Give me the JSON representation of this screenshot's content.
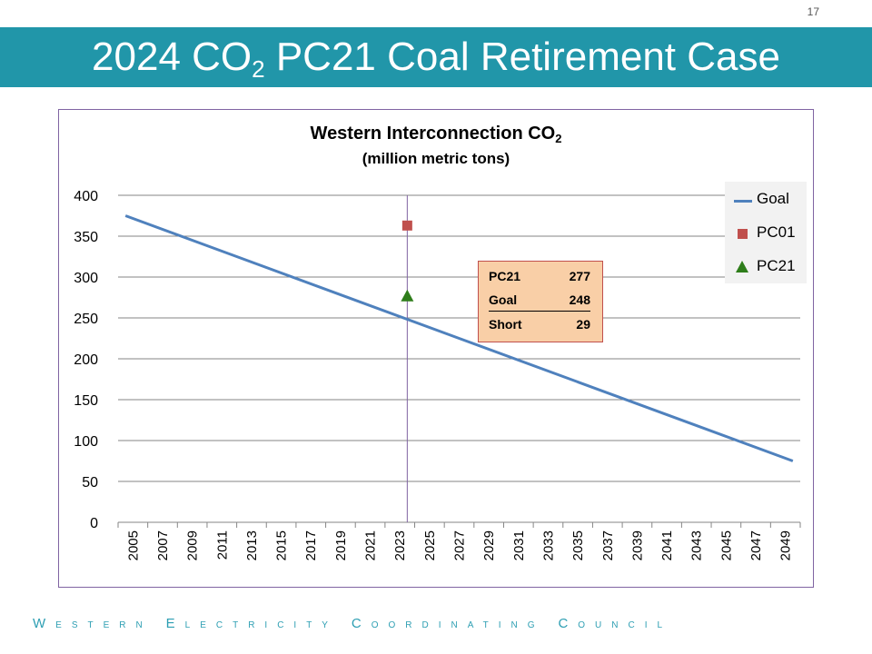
{
  "slide": {
    "number": "17",
    "title_prefix": "2024 CO",
    "title_sub": "2",
    "title_suffix": " PC21 Coal Retirement Case",
    "footer": "Western Electricity Coordinating Council",
    "accent": "#2196a9"
  },
  "chart_data": {
    "type": "line",
    "title_prefix": "Western Interconnection CO",
    "title_sub": "2",
    "subtitle": "(million metric tons)",
    "xlabel": "",
    "ylabel": "",
    "ylim": [
      0,
      400
    ],
    "xlim": [
      2005,
      2050
    ],
    "x_ticks": [
      "2005",
      "2007",
      "2009",
      "2011",
      "2013",
      "2015",
      "2017",
      "2019",
      "2021",
      "2023",
      "2025",
      "2027",
      "2029",
      "2031",
      "2033",
      "2035",
      "2037",
      "2039",
      "2041",
      "2043",
      "2045",
      "2047",
      "2049"
    ],
    "y_ticks": [
      "0",
      "50",
      "100",
      "150",
      "200",
      "250",
      "300",
      "350",
      "400"
    ],
    "grid": true,
    "legend_position": "top-right",
    "series": [
      {
        "name": "Goal",
        "type": "line",
        "color": "#4f81bd",
        "x": [
          2005,
          2050
        ],
        "y": [
          375,
          75
        ]
      },
      {
        "name": "PC01",
        "type": "marker",
        "marker": "square",
        "color": "#c0504d",
        "x": [
          2024
        ],
        "y": [
          363
        ]
      },
      {
        "name": "PC21",
        "type": "marker",
        "marker": "triangle",
        "color": "#2e7d1a",
        "x": [
          2024
        ],
        "y": [
          277
        ]
      }
    ],
    "reference_line": {
      "x": 2024,
      "color": "#8064a2"
    },
    "callout": {
      "rows": [
        {
          "label": "PC21",
          "value": "277"
        },
        {
          "label": "Goal",
          "value": "248"
        },
        {
          "label": "Short",
          "value": "29"
        }
      ]
    }
  }
}
